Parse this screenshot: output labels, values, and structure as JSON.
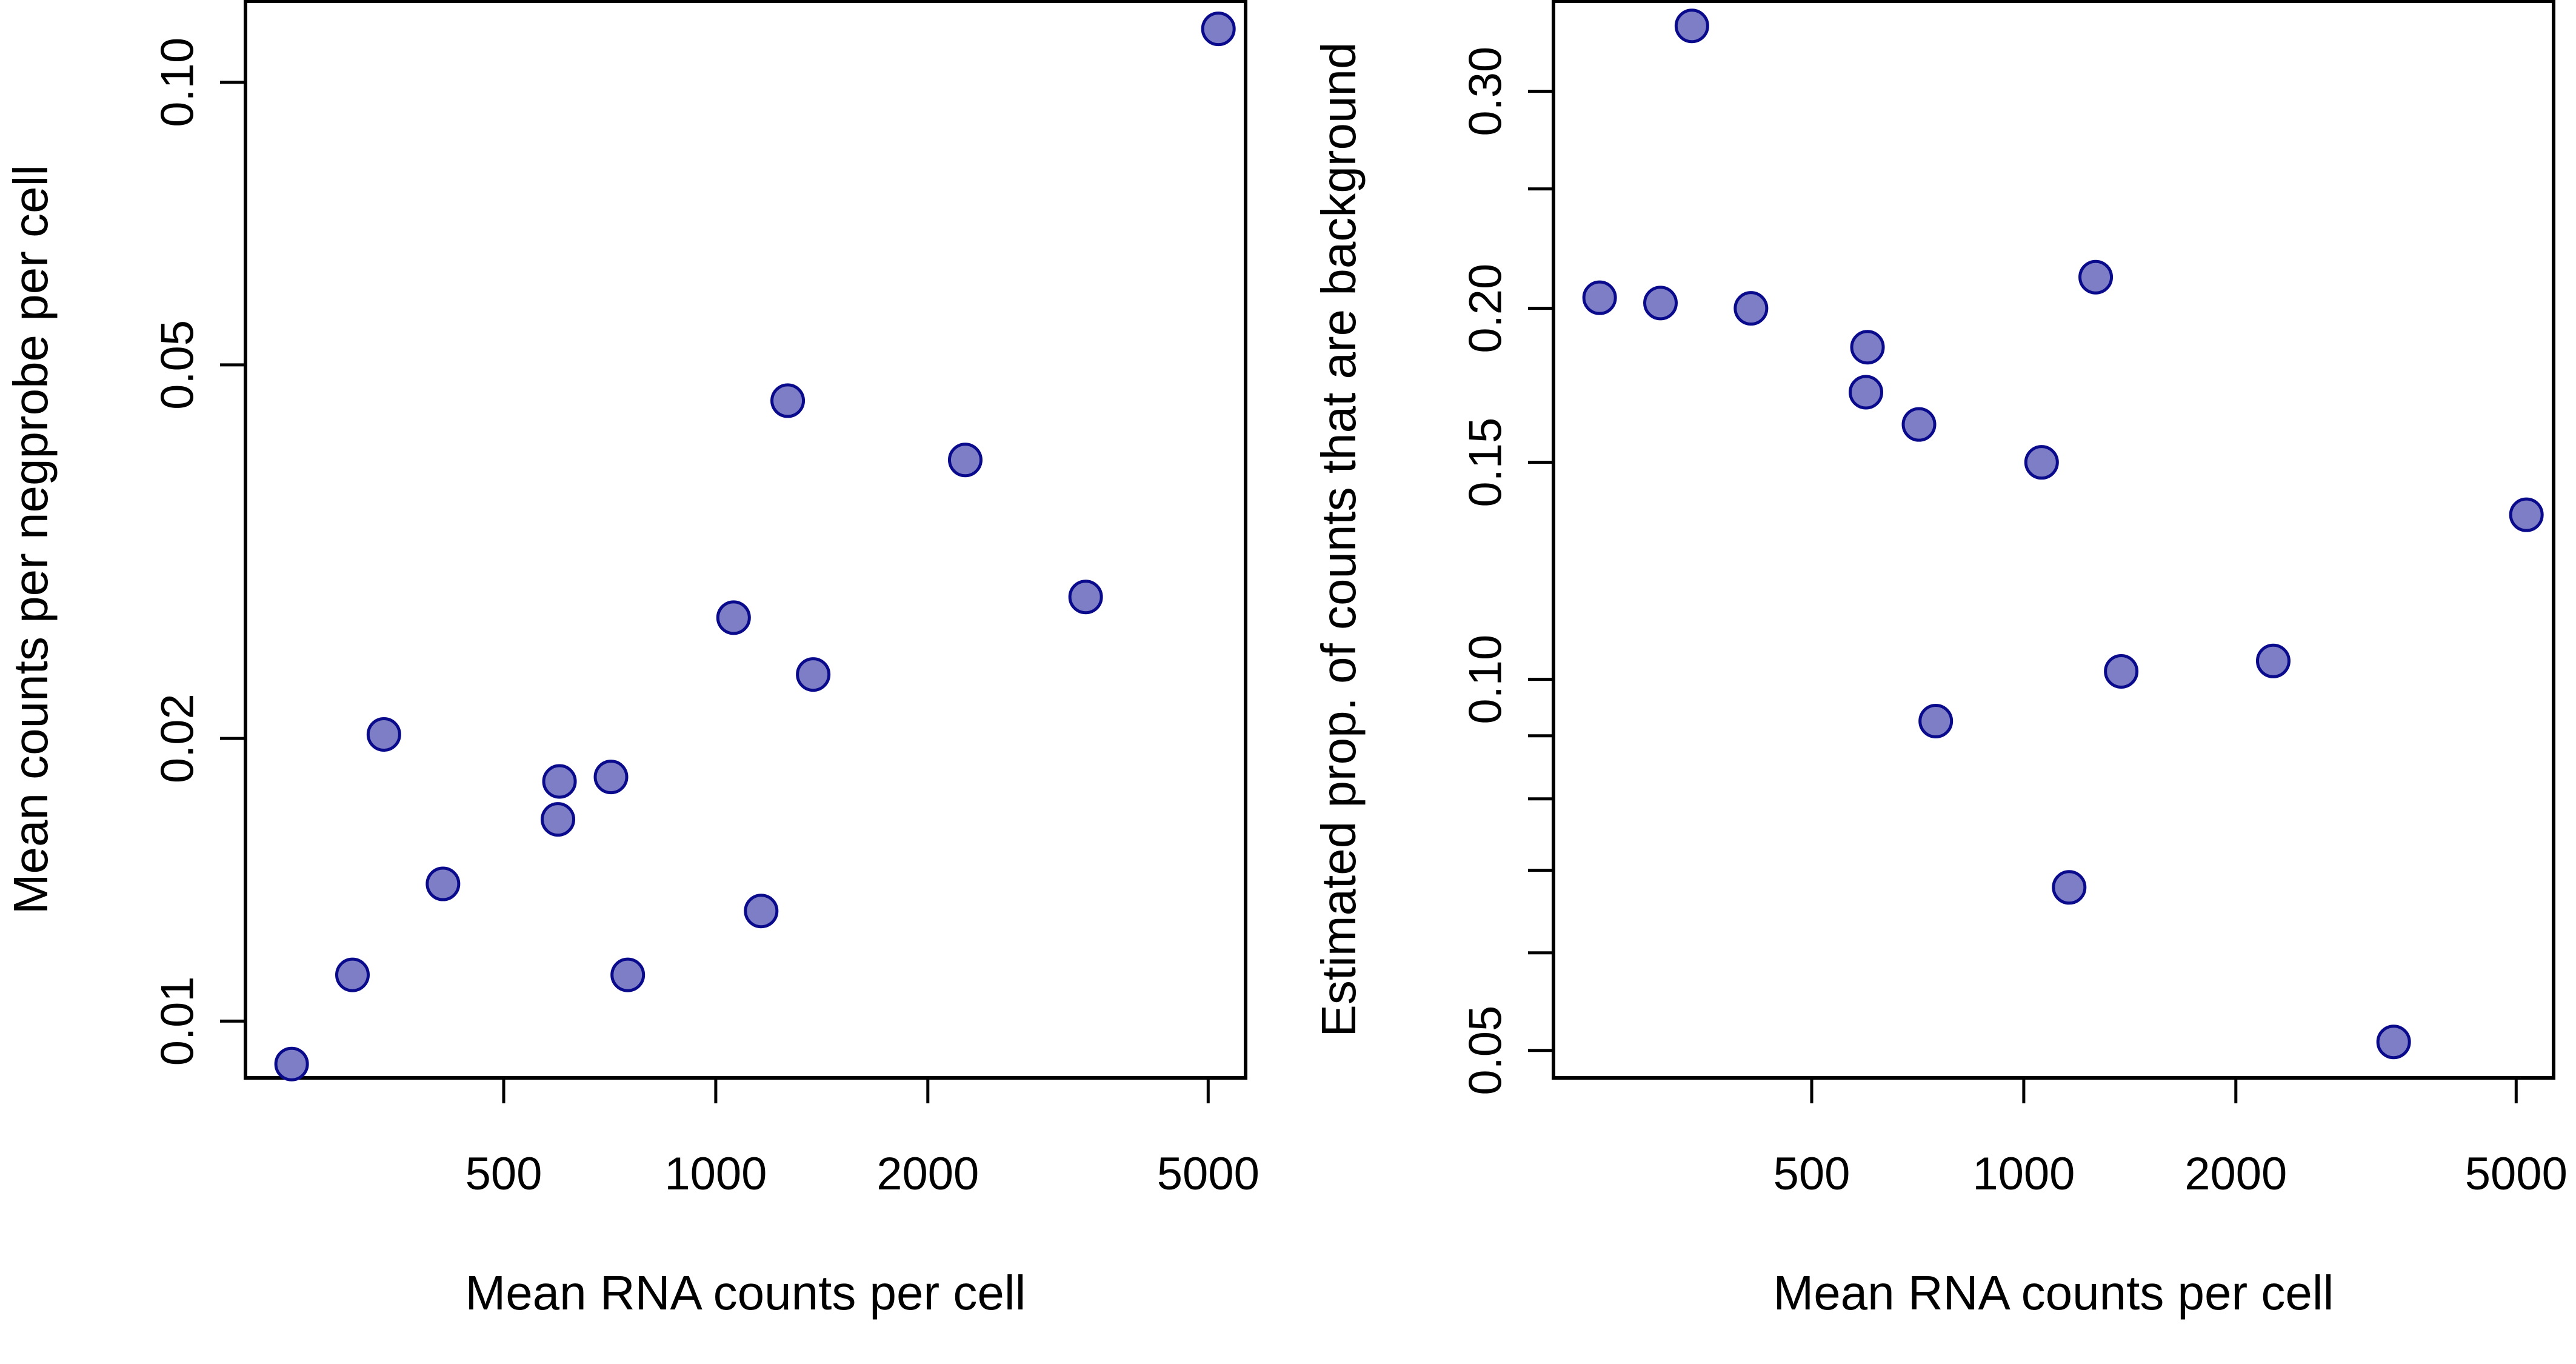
{
  "colors": {
    "point_fill": "#7e7ec6",
    "point_stroke": "#0a0a8c",
    "axis": "#000000",
    "background": "#ffffff"
  },
  "chart_data": [
    {
      "type": "scatter",
      "title": "",
      "xlabel": "Mean RNA counts per cell",
      "ylabel": "Mean counts per negprobe per cell",
      "xscale": "log",
      "yscale": "log",
      "xlim": [
        215,
        5650
      ],
      "ylim": [
        0.0087,
        0.122
      ],
      "xticks": [
        500,
        1000,
        2000,
        5000
      ],
      "xtick_labels": [
        "500",
        "1000",
        "2000",
        "5000"
      ],
      "yticks": [
        0.01,
        0.02,
        0.05,
        0.1
      ],
      "ytick_labels": [
        "0.01",
        "0.02",
        "0.05",
        "0.10"
      ],
      "grid": false,
      "legend": "none",
      "points": [
        {
          "x": 250,
          "y": 0.009
        },
        {
          "x": 305,
          "y": 0.0112
        },
        {
          "x": 338,
          "y": 0.0202
        },
        {
          "x": 410,
          "y": 0.014
        },
        {
          "x": 600,
          "y": 0.018
        },
        {
          "x": 597,
          "y": 0.0164
        },
        {
          "x": 710,
          "y": 0.0182
        },
        {
          "x": 750,
          "y": 0.0112
        },
        {
          "x": 1060,
          "y": 0.0269
        },
        {
          "x": 1160,
          "y": 0.0131
        },
        {
          "x": 1265,
          "y": 0.0458
        },
        {
          "x": 1375,
          "y": 0.0234
        },
        {
          "x": 2260,
          "y": 0.0396
        },
        {
          "x": 3350,
          "y": 0.0283
        },
        {
          "x": 5170,
          "y": 0.114
        }
      ]
    },
    {
      "type": "scatter",
      "title": "",
      "xlabel": "Mean RNA counts per cell",
      "ylabel": "Estimated prop. of counts that are background",
      "xscale": "log",
      "yscale": "log",
      "xlim": [
        215,
        5650
      ],
      "ylim": [
        0.0475,
        0.355
      ],
      "xticks": [
        500,
        1000,
        2000,
        5000
      ],
      "xtick_labels": [
        "500",
        "1000",
        "2000",
        "5000"
      ],
      "yticks": [
        0.05,
        0.06,
        0.07,
        0.08,
        0.09,
        0.1,
        0.15,
        0.2,
        0.25,
        0.3
      ],
      "ytick_labels": [
        "0.05",
        "",
        "",
        "",
        "",
        "0.10",
        "0.15",
        "0.20",
        "",
        "0.30"
      ],
      "grid": false,
      "legend": "none",
      "points": [
        {
          "x": 250,
          "y": 0.204
        },
        {
          "x": 305,
          "y": 0.202
        },
        {
          "x": 338,
          "y": 0.339
        },
        {
          "x": 410,
          "y": 0.2
        },
        {
          "x": 600,
          "y": 0.186
        },
        {
          "x": 597,
          "y": 0.171
        },
        {
          "x": 710,
          "y": 0.161
        },
        {
          "x": 750,
          "y": 0.0925
        },
        {
          "x": 1060,
          "y": 0.15
        },
        {
          "x": 1160,
          "y": 0.0678
        },
        {
          "x": 1265,
          "y": 0.212
        },
        {
          "x": 1375,
          "y": 0.1015
        },
        {
          "x": 2260,
          "y": 0.1035
        },
        {
          "x": 3350,
          "y": 0.0508
        },
        {
          "x": 5170,
          "y": 0.136
        }
      ]
    }
  ]
}
